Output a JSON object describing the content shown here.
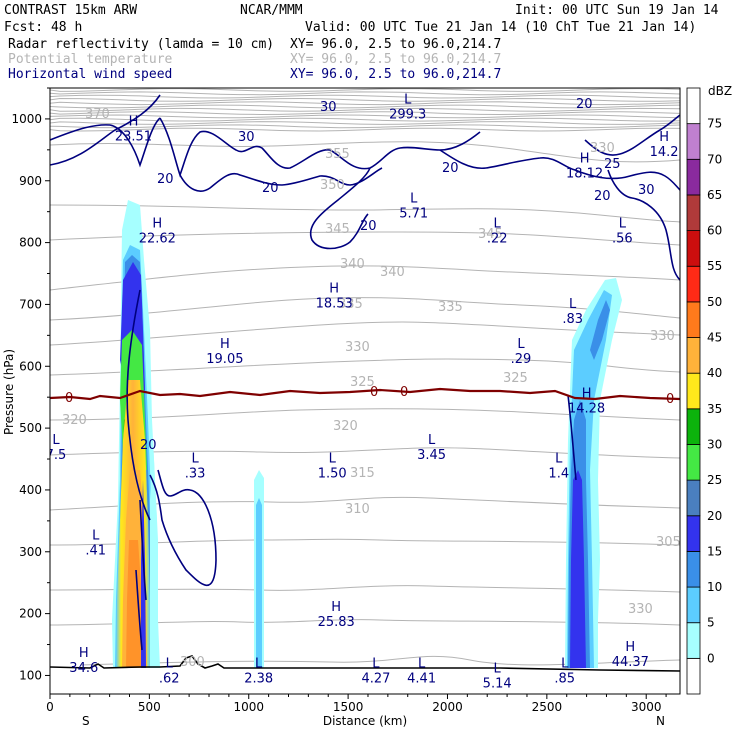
{
  "header": {
    "model": "CONTRAST 15km ARW",
    "center": "NCAR/MMM",
    "init": "Init: 00 UTC Sun 19 Jan 14",
    "fcst": "Fcst:   48 h",
    "valid": "Valid: 00 UTC Tue 21 Jan 14 (10 ChT Tue 21 Jan 14)",
    "fields": [
      {
        "name": "Radar reflectivity (lamda = 10 cm)",
        "xy": "XY=  96.0,  2.5 to  96.0,214.7",
        "color": "#000000"
      },
      {
        "name": "Potential temperature",
        "xy": "XY=  96.0,  2.5 to  96.0,214.7",
        "color": "#b4b4b4"
      },
      {
        "name": "Horizontal wind speed",
        "xy": "XY=  96.0,  2.5 to  96.0,214.7",
        "color": "#00007f"
      }
    ]
  },
  "chart_data": {
    "type": "cross-section",
    "xlabel": "Distance (km)",
    "ylabel": "Pressure (hPa)",
    "xlim": [
      0,
      3170
    ],
    "ylim": [
      1050,
      70
    ],
    "x_ticks": [
      0,
      500,
      1000,
      1500,
      2000,
      2500,
      3000
    ],
    "y_ticks": [
      100,
      200,
      300,
      400,
      500,
      600,
      700,
      800,
      900,
      1000
    ],
    "x_end_labels": {
      "left": "S",
      "right": "N"
    },
    "colorbar": {
      "unit": "dBZ",
      "levels": [
        0,
        5,
        10,
        15,
        20,
        25,
        30,
        35,
        40,
        45,
        50,
        55,
        60,
        65,
        70,
        75
      ],
      "colors": [
        "#ffffff",
        "#a6ffff",
        "#5ccdff",
        "#3a8fe8",
        "#3333ee",
        "#4a7fbf",
        "#44e844",
        "#0cb30c",
        "#ffe81c",
        "#ffb23a",
        "#ff7a1c",
        "#ff2a16",
        "#cc0e0e",
        "#b03a3a",
        "#8a2a9e",
        "#c080d0",
        "#ffffff"
      ]
    },
    "reflectivity_columns": [
      {
        "x_center": 410,
        "top_p": 240,
        "max_dbz": 50,
        "label": "western convective column"
      },
      {
        "x_center": 1050,
        "top_p": 680,
        "max_dbz": 10,
        "label": "shallow column"
      },
      {
        "x_center": 2700,
        "top_p": 370,
        "max_dbz": 20,
        "label": "eastern column"
      }
    ],
    "freezing_line": {
      "label": "0",
      "pressure": 560,
      "color": "#7f0000"
    },
    "theta_labels": [
      "370",
      "355",
      "350",
      "345",
      "340",
      "335",
      "330",
      "325",
      "320",
      "315",
      "310",
      "305",
      "300",
      "330",
      "330",
      "330",
      "345",
      "340",
      "335",
      "325",
      "320"
    ],
    "wind_contour_labels": [
      "30",
      "20",
      "20",
      "30",
      "20",
      "20",
      "20",
      "25",
      "30",
      "20",
      "20"
    ],
    "extrema": [
      {
        "type": "H",
        "value": "34.6",
        "x": 170,
        "p": 115
      },
      {
        "type": "L",
        "value": ".62",
        "x": 600,
        "p": 98
      },
      {
        "type": "L",
        "value": "2.38",
        "x": 1050,
        "p": 98
      },
      {
        "type": "L",
        "value": "4.27",
        "x": 1640,
        "p": 98
      },
      {
        "type": "L",
        "value": "4.41",
        "x": 1870,
        "p": 98
      },
      {
        "type": "L",
        "value": "5.14",
        "x": 2250,
        "p": 90
      },
      {
        "type": "L",
        "value": ".85",
        "x": 2590,
        "p": 98
      },
      {
        "type": "H",
        "value": "44.37",
        "x": 2920,
        "p": 125
      },
      {
        "type": "H",
        "value": "25.83",
        "x": 1440,
        "p": 190
      },
      {
        "type": "L",
        "value": ".41",
        "x": 230,
        "p": 305
      },
      {
        "type": "L",
        "value": ".33",
        "x": 730,
        "p": 430
      },
      {
        "type": "L",
        "value": "1.50",
        "x": 1420,
        "p": 430
      },
      {
        "type": "L",
        "value": "3.45",
        "x": 1920,
        "p": 460
      },
      {
        "type": "L",
        "value": "1.4",
        "x": 2560,
        "p": 430
      },
      {
        "type": "H",
        "value": "14.28",
        "x": 2700,
        "p": 535
      },
      {
        "type": "H",
        "value": "19.05",
        "x": 880,
        "p": 615
      },
      {
        "type": "L",
        "value": ".29",
        "x": 2370,
        "p": 615
      },
      {
        "type": "L",
        "value": ".83",
        "x": 2630,
        "p": 680
      },
      {
        "type": "H",
        "value": "18.53",
        "x": 1430,
        "p": 705
      },
      {
        "type": "H",
        "value": "22.62",
        "x": 540,
        "p": 810
      },
      {
        "type": "L",
        "value": ".22",
        "x": 2250,
        "p": 810
      },
      {
        "type": "L",
        "value": ".56",
        "x": 2880,
        "p": 810
      },
      {
        "type": "L",
        "value": "5.71",
        "x": 1830,
        "p": 850
      },
      {
        "type": "H",
        "value": "18.12",
        "x": 2690,
        "p": 915
      },
      {
        "type": "H",
        "value": "14.2",
        "x": 3090,
        "p": 950
      },
      {
        "type": "H",
        "value": "23.51",
        "x": 420,
        "p": 975
      },
      {
        "type": "L",
        "value": "299.3",
        "x": 1800,
        "p": 1010
      },
      {
        "type": "L",
        "value": "7.5",
        "x": 30,
        "p": 460
      }
    ]
  }
}
